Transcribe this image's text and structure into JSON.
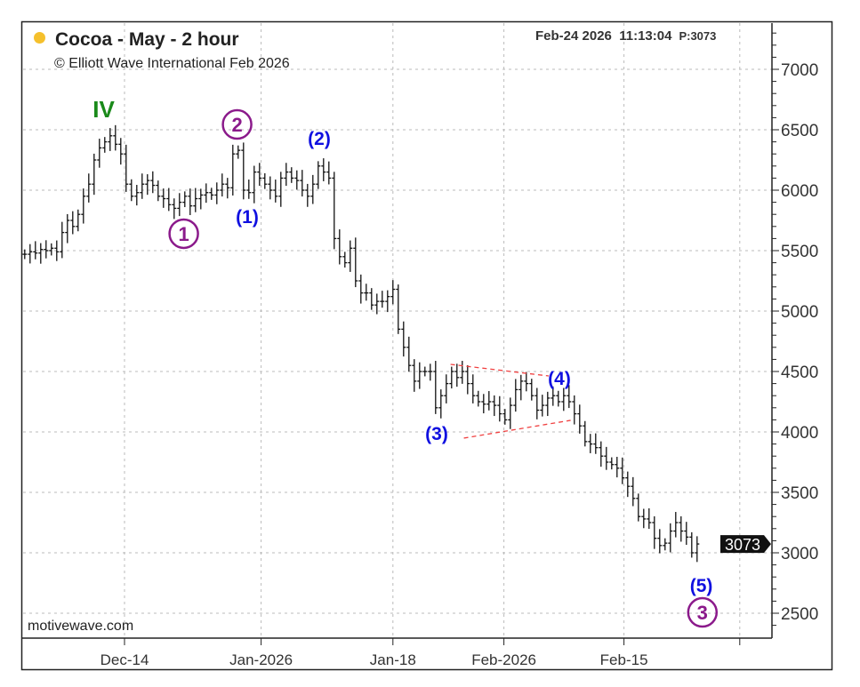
{
  "header": {
    "title": "Cocoa - May - 2 hour",
    "copyright": "© Elliott Wave International Feb 2026",
    "timestamp": "Feb-24 2026  11:13:04",
    "price_readout": "P:3073",
    "status_dot_color": "#f5c02c"
  },
  "footer": {
    "brand": "motivewave.com"
  },
  "chart_data": {
    "type": "ohlc",
    "title": "Cocoa - May - 2 hour",
    "ylim": [
      2300,
      7300
    ],
    "y_ticks": [
      2500,
      3000,
      3500,
      4000,
      4500,
      5000,
      5500,
      6000,
      6500,
      7000
    ],
    "x_ticks": [
      {
        "label": "Dec-14",
        "bar": 18.7
      },
      {
        "label": "Jan-2026",
        "bar": 44.3
      },
      {
        "label": "Jan-18",
        "bar": 69
      },
      {
        "label": "Feb-2026",
        "bar": 89.8
      },
      {
        "label": "Feb-15",
        "bar": 112.3
      },
      {
        "label": "",
        "bar": 134
      }
    ],
    "xlim": [
      -0.3,
      140
    ],
    "last_price": "3073",
    "closes": [
      5470,
      5490,
      5480,
      5510,
      5500,
      5520,
      5490,
      5650,
      5750,
      5700,
      5800,
      5950,
      6050,
      6250,
      6350,
      6400,
      6450,
      6380,
      6300,
      6050,
      5950,
      5980,
      6050,
      6080,
      6040,
      5950,
      5930,
      5880,
      5850,
      5900,
      5950,
      5870,
      5930,
      5960,
      5980,
      5960,
      6000,
      6050,
      6020,
      6300,
      6330,
      6000,
      5980,
      6150,
      6100,
      6050,
      6000,
      5950,
      6100,
      6150,
      6100,
      6080,
      6000,
      5950,
      6050,
      6200,
      6150,
      6100,
      5600,
      5450,
      5400,
      5520,
      5250,
      5150,
      5150,
      5050,
      5080,
      5080,
      5120,
      5180,
      4850,
      4700,
      4550,
      4420,
      4500,
      4500,
      4500,
      4200,
      4300,
      4400,
      4500,
      4450,
      4500,
      4400,
      4300,
      4250,
      4230,
      4250,
      4220,
      4150,
      4100,
      4220,
      4350,
      4420,
      4400,
      4300,
      4180,
      4220,
      4280,
      4300,
      4250,
      4300,
      4250,
      4150,
      4050,
      3920,
      3900,
      3870,
      3800,
      3750,
      3730,
      3700,
      3620,
      3550,
      3450,
      3300,
      3280,
      3250,
      3120,
      3060,
      3080,
      3180,
      3250,
      3180,
      3130,
      3000,
      3073
    ],
    "annotations": [
      {
        "text": "IV",
        "bar": 14.8,
        "price": 6662,
        "color": "#1a8a1a",
        "circle": false
      },
      {
        "text": "1",
        "bar": 29.8,
        "price": 5640,
        "color": "#8b1a8b",
        "circle": true
      },
      {
        "text": "2",
        "bar": 39.8,
        "price": 6544,
        "color": "#8b1a8b",
        "circle": true
      },
      {
        "text": "(1)",
        "bar": 41.7,
        "price": 5787,
        "color": "#1010e0",
        "circle": false
      },
      {
        "text": "(2)",
        "bar": 55.2,
        "price": 6434,
        "color": "#1010e0",
        "circle": false
      },
      {
        "text": "(3)",
        "bar": 77.2,
        "price": 3993,
        "color": "#1010e0",
        "circle": false
      },
      {
        "text": "(4)",
        "bar": 100.2,
        "price": 4449,
        "color": "#1010e0",
        "circle": false
      },
      {
        "text": "(5)",
        "bar": 126.8,
        "price": 2735,
        "color": "#1010e0",
        "circle": false
      },
      {
        "text": "3",
        "bar": 127,
        "price": 2507,
        "color": "#8b1a8b",
        "circle": true
      }
    ],
    "trendlines": [
      {
        "from": [
          79.8,
          4559
        ],
        "to": [
          98.2,
          4463
        ],
        "color": "#f04040"
      },
      {
        "from": [
          82.3,
          3949
        ],
        "to": [
          102.3,
          4096
        ],
        "color": "#f04040"
      }
    ]
  }
}
